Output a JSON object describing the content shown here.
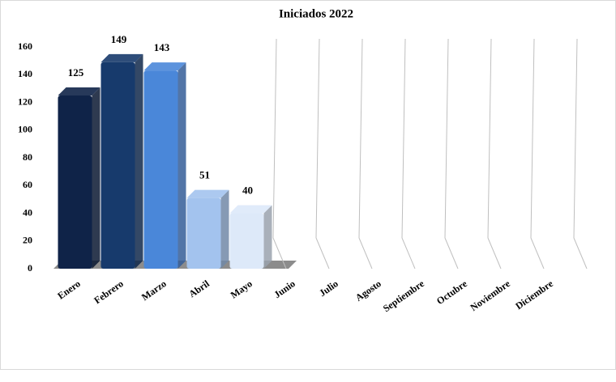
{
  "chart_data": {
    "type": "bar",
    "title": "Iniciados 2022",
    "categories": [
      "Enero",
      "Febrero",
      "Marzo",
      "Abril",
      "Mayo",
      "Junio",
      "Julio",
      "Agosto",
      "Septiembre",
      "Octubre",
      "Noviembre",
      "Diciembre"
    ],
    "values": [
      125,
      149,
      143,
      51,
      40,
      null,
      null,
      null,
      null,
      null,
      null,
      null
    ],
    "colors": [
      "#0f2348",
      "#173a6c",
      "#4a87d9",
      "#a3c3ee",
      "#dde9f9",
      "#dde9f9",
      "#dde9f9",
      "#dde9f9",
      "#dde9f9",
      "#dde9f9",
      "#dde9f9",
      "#dde9f9"
    ],
    "ylim": [
      0,
      160
    ],
    "yticks": [
      0,
      20,
      40,
      60,
      80,
      100,
      120,
      140,
      160
    ]
  }
}
